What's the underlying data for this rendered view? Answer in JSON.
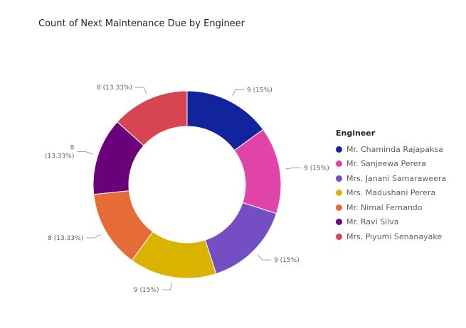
{
  "chart_data": {
    "type": "pie",
    "title": "Count of Next Maintenance Due by Engineer",
    "legend_title": "Engineer",
    "legend_position": "right",
    "slices": [
      {
        "label": "Mr. Chaminda Rajapaksa",
        "value": 9,
        "data_label": "9 (15%)",
        "color": "#12239e"
      },
      {
        "label": "Mr. Sanjeewa Perera",
        "value": 9,
        "data_label": "9 (15%)",
        "color": "#e044a7"
      },
      {
        "label": "Mrs. Janani Samaraweera",
        "value": 9,
        "data_label": "9 (15%)",
        "color": "#744ec2"
      },
      {
        "label": "Mrs. Madushani Perera",
        "value": 9,
        "data_label": "9 (15%)",
        "color": "#d9b300"
      },
      {
        "label": "Mr. Nimal Fernando",
        "value": 8,
        "data_label": "8 (13.33%)",
        "color": "#e66c37"
      },
      {
        "label": "Mr. Ravi Silva",
        "value": 8,
        "data_label": "8\n(13.33%)",
        "color": "#6b007b"
      },
      {
        "label": "Mrs. Piyumi Senanayake",
        "value": 8,
        "data_label": "8 (13.33%)",
        "color": "#d64550"
      }
    ]
  }
}
